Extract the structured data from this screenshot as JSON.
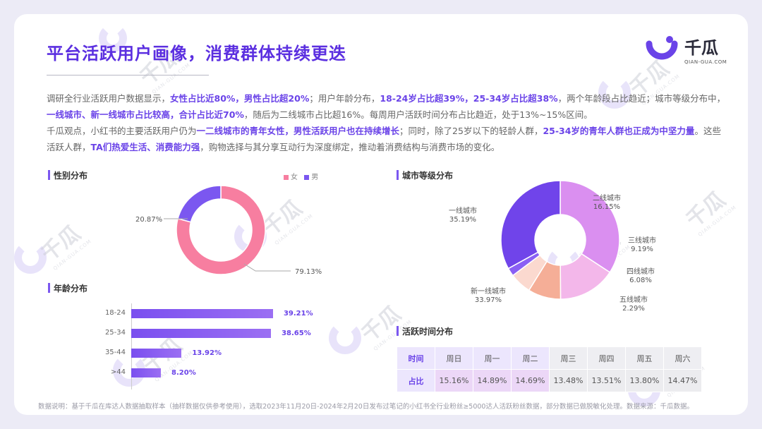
{
  "title": "平台活跃用户画像，消费群体持续更迭",
  "logo": {
    "name": "千瓜",
    "url": "QIAN-GUA.COM"
  },
  "watermark": {
    "name": "千瓜",
    "url": "QIAN-GUA.COM"
  },
  "intro": {
    "p1": [
      {
        "t": "调研全行业活跃用户数据显示，",
        "b": false
      },
      {
        "t": "女性占比近80%，男性占比超20%",
        "b": true
      },
      {
        "t": "；用户年龄分布，",
        "b": false
      },
      {
        "t": "18-24岁占比超39%，25-34岁占比超38%",
        "b": true
      },
      {
        "t": "，两个年龄段占比趋近；城市等级分布中，",
        "b": false
      },
      {
        "t": "一线城市、新一线城市占比较高，合计占比近70%",
        "b": true
      },
      {
        "t": "，随后为二线城市占比超16%。每周用户活跃时间分布占比趋近，处于13%~15%区间。",
        "b": false
      }
    ],
    "p2": [
      {
        "t": "千瓜观点，小红书的主要活跃用户仍为",
        "b": false
      },
      {
        "t": "一二线城市的青年女性，男性活跃用户也在持续增长",
        "b": true
      },
      {
        "t": "；同时，除了25岁以下的轻龄人群，",
        "b": false
      },
      {
        "t": "25-34岁的青年人群也正成为中坚力量",
        "b": true
      },
      {
        "t": "。这些活跃人群，",
        "b": false
      },
      {
        "t": "TA们热爱生活、消费能力强",
        "b": true
      },
      {
        "t": "，购物选择与其分享互动行为深度绑定，推动着消费结构与消费市场的变化。",
        "b": false
      }
    ]
  },
  "sections": {
    "gender": "性别分布",
    "age": "年龄分布",
    "city": "城市等级分布",
    "time": "活跃时间分布"
  },
  "footer": "数据说明：基于千瓜在库达人数据抽取样本（抽样数据仅供参考使用），选取2023年11月20日-2024年2月20日发布过笔记的小红书全行业粉丝≥5000达人活跃粉丝数据，部分数据已做脱敏化处理。数据来源：千瓜数据。",
  "colors": {
    "accent": "#5b2fe0",
    "female": "#f77ea0",
    "male": "#7b57f0"
  },
  "chart_data": [
    {
      "type": "pie",
      "title": "性别分布",
      "series": [
        {
          "name": "女",
          "value": 79.13,
          "label": "79.13%",
          "color": "#f77ea0"
        },
        {
          "name": "男",
          "value": 20.87,
          "label": "20.87%",
          "color": "#7b57f0"
        }
      ]
    },
    {
      "type": "bar",
      "title": "年龄分布",
      "orientation": "horizontal",
      "categories": [
        "18-24",
        "25-34",
        "35-44",
        ">44"
      ],
      "values": [
        39.21,
        38.65,
        13.92,
        8.2
      ],
      "labels": [
        "39.21%",
        "38.65%",
        "13.92%",
        "8.20%"
      ],
      "xlim": [
        0,
        40
      ]
    },
    {
      "type": "pie",
      "title": "城市等级分布",
      "series": [
        {
          "name": "一线城市",
          "value": 35.19,
          "label": "35.19%",
          "color": "#da8ff0"
        },
        {
          "name": "二线城市",
          "value": 16.15,
          "label": "16.15%",
          "color": "#f3b7ea"
        },
        {
          "name": "三线城市",
          "value": 9.19,
          "label": "9.19%",
          "color": "#f5ae97"
        },
        {
          "name": "四线城市",
          "value": 6.08,
          "label": "6.08%",
          "color": "#fbd9cf"
        },
        {
          "name": "五线城市",
          "value": 2.29,
          "label": "2.29%",
          "color": "#8a5ff4"
        },
        {
          "name": "新一线城市",
          "value": 33.97,
          "label": "33.97%",
          "color": "#7044ea"
        }
      ]
    },
    {
      "type": "table",
      "title": "活跃时间分布",
      "row_headers": [
        "时间",
        "占比"
      ],
      "columns": [
        "周日",
        "周一",
        "周二",
        "周三",
        "周四",
        "周五",
        "周六"
      ],
      "values": [
        "15.16%",
        "14.89%",
        "14.69%",
        "13.48%",
        "13.51%",
        "13.80%",
        "14.47%"
      ],
      "highlighted_columns": [
        "周日",
        "周一",
        "周二"
      ]
    }
  ]
}
